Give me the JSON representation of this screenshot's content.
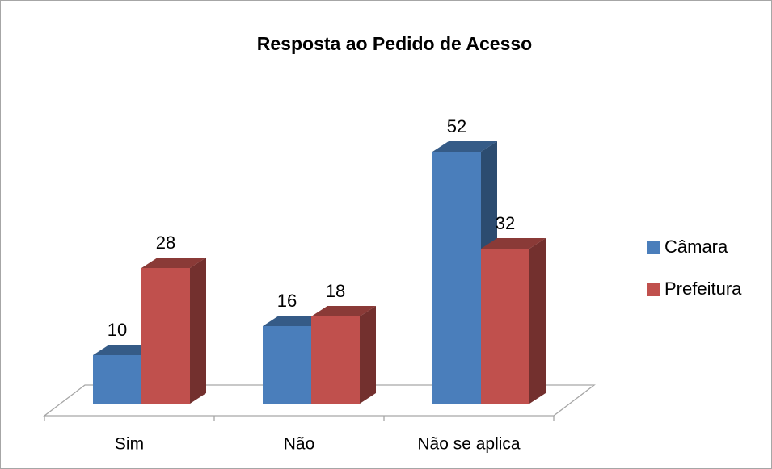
{
  "chart_data": {
    "type": "bar3d",
    "title": "Resposta ao Pedido de Acesso",
    "categories": [
      "Sim",
      "Não",
      "Não se aplica"
    ],
    "series": [
      {
        "name": "Câmara",
        "color": "#4a7ebb",
        "values": [
          10,
          16,
          52
        ]
      },
      {
        "name": "Prefeitura",
        "color": "#c0504d",
        "values": [
          28,
          18,
          32
        ]
      }
    ],
    "legend": "right"
  }
}
